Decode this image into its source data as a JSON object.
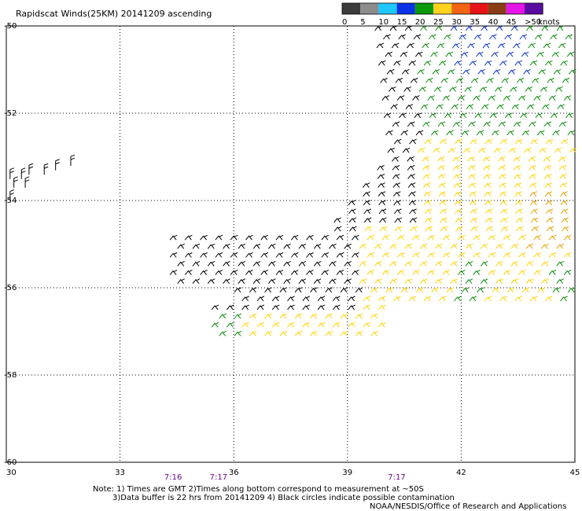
{
  "chart_data": {
    "type": "scatter",
    "title": "Rapidscat Winds(25KM) 20141209 ascending",
    "xlim": [
      30,
      45
    ],
    "ylim": [
      -60,
      -50
    ],
    "x_ticks": [
      "30",
      "33",
      "36",
      "39",
      "42",
      "45"
    ],
    "y_ticks": [
      "-50",
      "-52",
      "-54",
      "-56",
      "-58",
      "-60"
    ],
    "grid": true,
    "legend": {
      "placement": "top-right",
      "unit_label": "knots",
      "bins": [
        {
          "label": "0",
          "color": "#3c3c3c"
        },
        {
          "label": "5",
          "color": "#8c8c8c"
        },
        {
          "label": "10",
          "color": "#1ec8ff"
        },
        {
          "label": "15",
          "color": "#0a32e6"
        },
        {
          "label": "20",
          "color": "#0a9a0a"
        },
        {
          "label": "25",
          "color": "#ffd21e"
        },
        {
          "label": "30",
          "color": "#f06414"
        },
        {
          "label": "35",
          "color": "#e61414"
        },
        {
          "label": "40",
          "color": "#8a3c14"
        },
        {
          "label": "45",
          "color": "#e614e6"
        },
        {
          "label": ">50",
          "color": "#5a0aa0"
        }
      ]
    },
    "time_labels": [
      {
        "lon": 34.4,
        "text": "7:16"
      },
      {
        "lon": 35.6,
        "text": "7:17"
      },
      {
        "lon": 40.3,
        "text": "7:17"
      }
    ],
    "notes": [
      "Note: 1) Times are GMT 2)Times along bottom correspond to measurement at ~50S",
      "3)Data buffer is 22 hrs from 20141209 4) Black circles indicate possible contamination",
      "NOAA/NESDIS/Office of Research and Applications"
    ],
    "wind_colors": {
      "calm": "#000000",
      "light": "#ffd200",
      "moderate": "#0a8c0a",
      "strong": "#0a32c8",
      "orange": "#e6a000"
    },
    "west_cluster": [
      {
        "lon": 30.1,
        "lat": -53.4
      },
      {
        "lon": 30.4,
        "lat": -53.4
      },
      {
        "lon": 30.6,
        "lat": -53.3
      },
      {
        "lon": 31.0,
        "lat": -53.3
      },
      {
        "lon": 31.3,
        "lat": -53.2
      },
      {
        "lon": 30.2,
        "lat": -53.6
      },
      {
        "lon": 30.5,
        "lat": -53.6
      },
      {
        "lon": 30.1,
        "lat": -53.9
      },
      {
        "lon": 31.7,
        "lat": -53.1
      }
    ]
  }
}
